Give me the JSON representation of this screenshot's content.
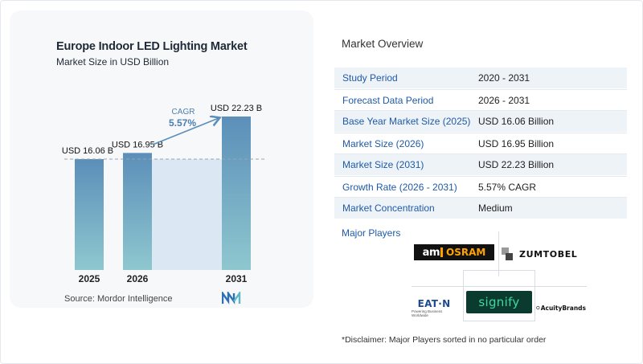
{
  "chart_data": {
    "type": "bar",
    "title": "Europe Indoor LED Lighting Market",
    "subtitle": "Market Size in USD Billion",
    "categories": [
      "2025",
      "2026",
      "2031"
    ],
    "values": [
      16.06,
      16.95,
      22.23
    ],
    "data_labels": [
      "USD 16.06 B",
      "USD 16.95 B",
      "USD 22.23 B"
    ],
    "cagr_label": "CAGR",
    "cagr_value": "5.57%",
    "xlabel": "",
    "ylabel": "",
    "grid": false,
    "reference_line": 16.06,
    "colors": {
      "bar_top": "#5b8fb9",
      "bar_bottom": "#8fc7cf",
      "shade": "#dbe7f3",
      "arrow": "#5b8fb9",
      "cagr_text": "#4a7fb0"
    }
  },
  "source": "Source:  Mordor Intelligence",
  "overview": {
    "title": "Market Overview",
    "rows": [
      {
        "label": "Study Period",
        "value": "2020 - 2031"
      },
      {
        "label": "Forecast Data Period",
        "value": "2026 - 2031"
      },
      {
        "label": "Base Year Market Size (2025)",
        "value": "USD 16.06 Billion"
      },
      {
        "label": "Market Size (2026)",
        "value": "USD 16.95 Billion"
      },
      {
        "label": "Market Size (2031)",
        "value": "USD 22.23 Billion"
      },
      {
        "label": "Growth Rate (2026 - 2031)",
        "value": "5.57% CAGR"
      },
      {
        "label": "Market Concentration",
        "value": "Medium"
      }
    ]
  },
  "players": {
    "title": "Major Players",
    "logos": {
      "ams_osram_left": "am",
      "ams_osram_right": "OSRAM",
      "zumtobel": "ZUMTOBEL",
      "eaton": "EAT·N",
      "eaton_tagline": "Powering Business Worldwide",
      "signify": "signify",
      "acuity": "AcuityBrands"
    }
  },
  "disclaimer": "*Disclaimer: Major Players sorted in no particular order"
}
